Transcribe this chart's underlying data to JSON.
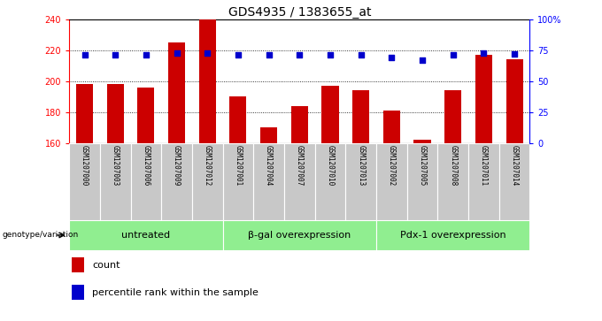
{
  "title": "GDS4935 / 1383655_at",
  "samples": [
    "GSM1207000",
    "GSM1207003",
    "GSM1207006",
    "GSM1207009",
    "GSM1207012",
    "GSM1207001",
    "GSM1207004",
    "GSM1207007",
    "GSM1207010",
    "GSM1207013",
    "GSM1207002",
    "GSM1207005",
    "GSM1207008",
    "GSM1207011",
    "GSM1207014"
  ],
  "counts": [
    198,
    198,
    196,
    225,
    240,
    190,
    170,
    184,
    197,
    194,
    181,
    162,
    194,
    217,
    214
  ],
  "percentile_ranks": [
    71,
    71,
    71,
    73,
    73,
    71,
    71,
    71,
    71,
    71,
    69,
    67,
    71,
    73,
    72
  ],
  "groups": [
    {
      "label": "untreated",
      "start": 0,
      "end": 5
    },
    {
      "label": "β-gal overexpression",
      "start": 5,
      "end": 10
    },
    {
      "label": "Pdx-1 overexpression",
      "start": 10,
      "end": 15
    }
  ],
  "ylim_left": [
    160,
    240
  ],
  "ylim_right": [
    0,
    100
  ],
  "yticks_left": [
    160,
    180,
    200,
    220,
    240
  ],
  "yticks_right": [
    0,
    25,
    50,
    75,
    100
  ],
  "ytick_labels_right": [
    "0",
    "25",
    "50",
    "75",
    "100%"
  ],
  "bar_color": "#cc0000",
  "square_color": "#0000cc",
  "bar_width": 0.55,
  "group_label_color": "#90ee90",
  "legend_count_label": "count",
  "legend_percentile_label": "percentile rank within the sample",
  "xlabel_left": "genotype/variation",
  "title_fontsize": 10,
  "tick_fontsize": 7,
  "group_fontsize": 8
}
